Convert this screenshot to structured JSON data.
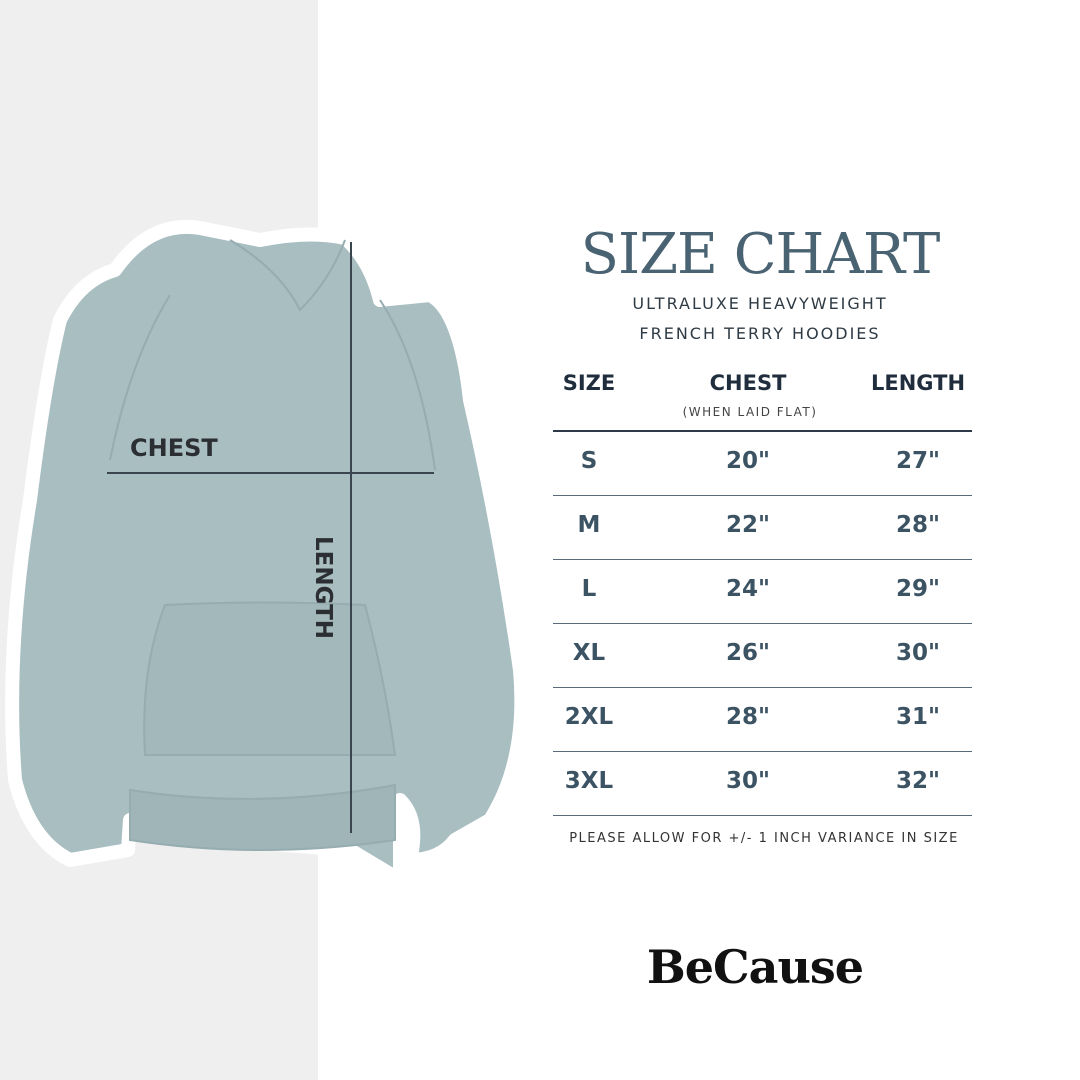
{
  "header": {
    "title": "SIZE CHART",
    "subtitle_line1": "ULTRALUXE HEAVYWEIGHT",
    "subtitle_line2": "FRENCH TERRY HOODIES"
  },
  "illustration": {
    "chest_label": "CHEST",
    "length_label": "LENGTH",
    "garment_color": "#a9bec1"
  },
  "table": {
    "headers": [
      {
        "label": "SIZE"
      },
      {
        "label": "CHEST",
        "note": "(WHEN LAID FLAT)"
      },
      {
        "label": "LENGTH"
      }
    ],
    "rows": [
      {
        "size": "S",
        "chest": "20\"",
        "length": "27\""
      },
      {
        "size": "M",
        "chest": "22\"",
        "length": "28\""
      },
      {
        "size": "L",
        "chest": "24\"",
        "length": "29\""
      },
      {
        "size": "XL",
        "chest": "26\"",
        "length": "30\""
      },
      {
        "size": "2XL",
        "chest": "28\"",
        "length": "31\""
      },
      {
        "size": "3XL",
        "chest": "30\"",
        "length": "32\""
      }
    ]
  },
  "footer": {
    "note": "PLEASE ALLOW FOR +/- 1 INCH VARIANCE IN SIZE",
    "brand": "BeCause"
  },
  "colors": {
    "title": "#4a6373",
    "values": "#3c5364",
    "header": "#1f2d3d"
  }
}
